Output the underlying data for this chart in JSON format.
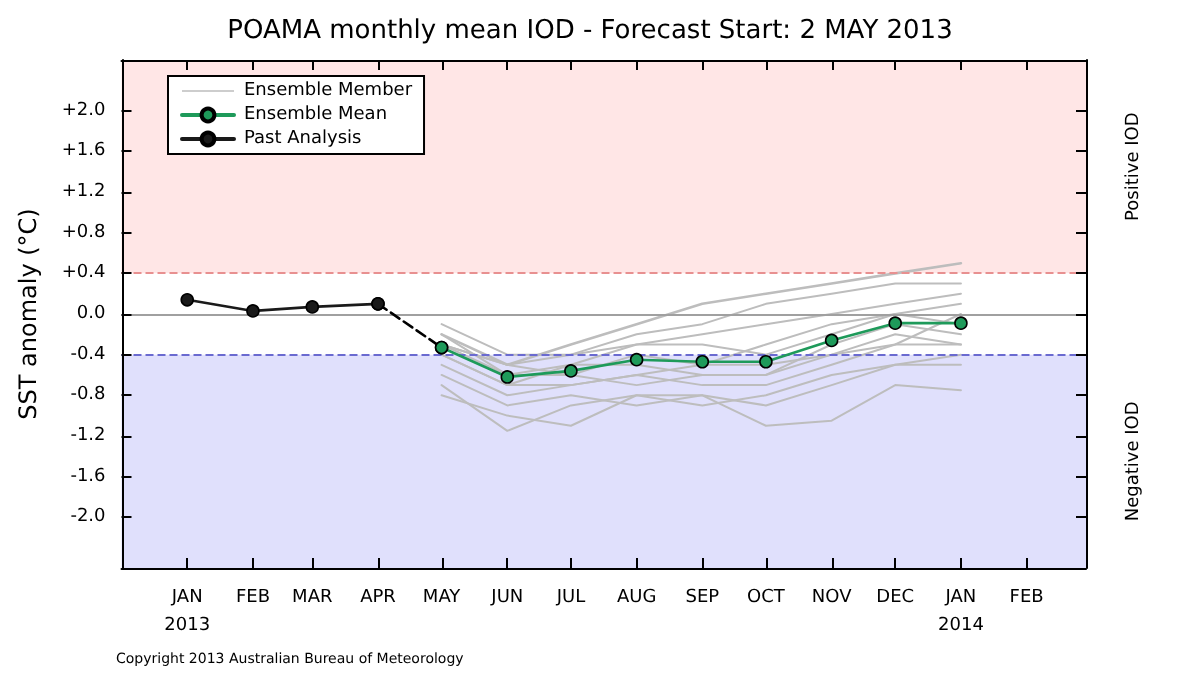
{
  "chart_data": {
    "type": "line",
    "title": "POAMA monthly mean IOD - Forecast Start: 2 MAY 2013",
    "ylabel": "SST anomaly (°C)",
    "annotations": [
      "Copyright 2013 Australian Bureau of Meteorology"
    ],
    "xlim": [
      "2012-12",
      "2014-03"
    ],
    "xticks": [
      {
        "value": "2013-01",
        "label": "JAN\n2013"
      },
      {
        "value": "2013-02",
        "label": "FEB"
      },
      {
        "value": "2013-03",
        "label": "MAR"
      },
      {
        "value": "2013-04",
        "label": "APR"
      },
      {
        "value": "2013-05",
        "label": "MAY"
      },
      {
        "value": "2013-06",
        "label": "JUN"
      },
      {
        "value": "2013-07",
        "label": "JUL"
      },
      {
        "value": "2013-08",
        "label": "AUG"
      },
      {
        "value": "2013-09",
        "label": "SEP"
      },
      {
        "value": "2013-10",
        "label": "OCT"
      },
      {
        "value": "2013-11",
        "label": "NOV"
      },
      {
        "value": "2013-12",
        "label": "DEC"
      },
      {
        "value": "2014-01",
        "label": "JAN\n2014"
      },
      {
        "value": "2014-02",
        "label": "FEB"
      }
    ],
    "ylim": [
      -2.5,
      2.5
    ],
    "yticks": [
      {
        "value": 2.0,
        "label": "+2.0"
      },
      {
        "value": 1.6,
        "label": "+1.6"
      },
      {
        "value": 1.2,
        "label": "+1.2"
      },
      {
        "value": 0.8,
        "label": "+0.8"
      },
      {
        "value": 0.4,
        "label": "+0.4"
      },
      {
        "value": 0,
        "label": "0.0"
      },
      {
        "value": -0.4,
        "label": "-0.4"
      },
      {
        "value": -0.8,
        "label": "-0.8"
      },
      {
        "value": -1.2,
        "label": "-1.2"
      },
      {
        "value": -1.6,
        "label": "-1.6"
      },
      {
        "value": -2.0,
        "label": "-2.0"
      }
    ],
    "grid": false,
    "legend": "top left",
    "marker": "circle",
    "bands": [
      {
        "axis": "y",
        "from": 0.4,
        "to": 2.5,
        "label": "Positive IOD",
        "color": "#ffe6e6"
      },
      {
        "axis": "y",
        "from": -2.5,
        "to": -0.4,
        "label": "Negative IOD",
        "color": "#e0e0fc"
      }
    ],
    "ref_lines": [
      {
        "axis": "y",
        "value": 0.4,
        "color": "#e89090",
        "line_style": "dashed"
      },
      {
        "axis": "y",
        "value": -0.4,
        "color": "#6a6ad0",
        "line_style": "dashed"
      },
      {
        "axis": "y",
        "value": 0,
        "color": "#a0a0a0",
        "line_style": "solid"
      }
    ],
    "x": [
      "2013-05",
      "2013-06",
      "2013-07",
      "2013-08",
      "2013-09",
      "2013-10",
      "2013-11",
      "2013-12",
      "2014-01"
    ],
    "series": [
      {
        "name": "Ensemble Member",
        "color": "#bdbdbd",
        "marker": "none",
        "values": [
          -0.2,
          -0.5,
          -0.3,
          -0.1,
          0.1,
          0.2,
          0.3,
          0.4,
          0.5
        ]
      },
      {
        "color": "#bdbdbd",
        "marker": "none",
        "values": [
          -0.1,
          -0.4,
          -0.4,
          -0.2,
          -0.1,
          0.1,
          0.2,
          0.3,
          0.3
        ]
      },
      {
        "color": "#bdbdbd",
        "marker": "none",
        "values": [
          -0.3,
          -0.5,
          -0.4,
          -0.3,
          -0.2,
          -0.1,
          0.0,
          0.1,
          0.2
        ]
      },
      {
        "color": "#bdbdbd",
        "marker": "none",
        "values": [
          -0.3,
          -0.6,
          -0.6,
          -0.4,
          -0.5,
          -0.3,
          -0.1,
          0.0,
          -0.1
        ]
      },
      {
        "color": "#bdbdbd",
        "marker": "none",
        "values": [
          -0.4,
          -0.7,
          -0.5,
          -0.5,
          -0.6,
          -0.6,
          -0.3,
          -0.1,
          -0.2
        ]
      },
      {
        "color": "#bdbdbd",
        "marker": "none",
        "values": [
          -0.5,
          -0.8,
          -0.7,
          -0.6,
          -0.7,
          -0.7,
          -0.5,
          -0.3,
          -0.3
        ]
      },
      {
        "color": "#bdbdbd",
        "marker": "none",
        "values": [
          -0.7,
          -1.15,
          -0.9,
          -0.8,
          -0.8,
          -0.9,
          -0.7,
          -0.5,
          -0.4
        ]
      },
      {
        "color": "#bdbdbd",
        "marker": "none",
        "values": [
          -0.8,
          -1.0,
          -1.1,
          -0.8,
          -0.9,
          -0.8,
          -0.6,
          -0.5,
          -0.5
        ]
      },
      {
        "color": "#bdbdbd",
        "marker": "none",
        "values": [
          -0.6,
          -0.9,
          -0.8,
          -0.9,
          -0.8,
          -1.1,
          -1.05,
          -0.7,
          -0.75
        ]
      },
      {
        "color": "#bdbdbd",
        "marker": "none",
        "values": [
          -0.2,
          -0.6,
          -0.5,
          -0.3,
          -0.3,
          -0.4,
          -0.2,
          0.0,
          0.1
        ]
      },
      {
        "color": "#bdbdbd",
        "marker": "none",
        "values": [
          -0.4,
          -0.7,
          -0.7,
          -0.6,
          -0.5,
          -0.5,
          -0.4,
          -0.2,
          -0.3
        ]
      },
      {
        "color": "#bdbdbd",
        "marker": "none",
        "values": [
          -0.3,
          -0.5,
          -0.6,
          -0.7,
          -0.6,
          -0.6,
          -0.4,
          -0.3,
          0.0
        ]
      },
      {
        "color": "#000000",
        "line_style": "dashed",
        "x": [
          "2013-04",
          "2013-05"
        ],
        "values": [
          0.1,
          -0.33
        ]
      },
      {
        "name": "Ensemble Mean",
        "color": "#1e9a5a",
        "values": [
          -0.33,
          -0.62,
          -0.56,
          -0.45,
          -0.47,
          -0.47,
          -0.26,
          -0.09,
          -0.09
        ]
      },
      {
        "name": "Past Analysis",
        "color": "#1a1a1a",
        "x": [
          "2013-01",
          "2013-02",
          "2013-03",
          "2013-04"
        ],
        "values": [
          0.14,
          0.03,
          0.07,
          0.1
        ]
      }
    ]
  }
}
